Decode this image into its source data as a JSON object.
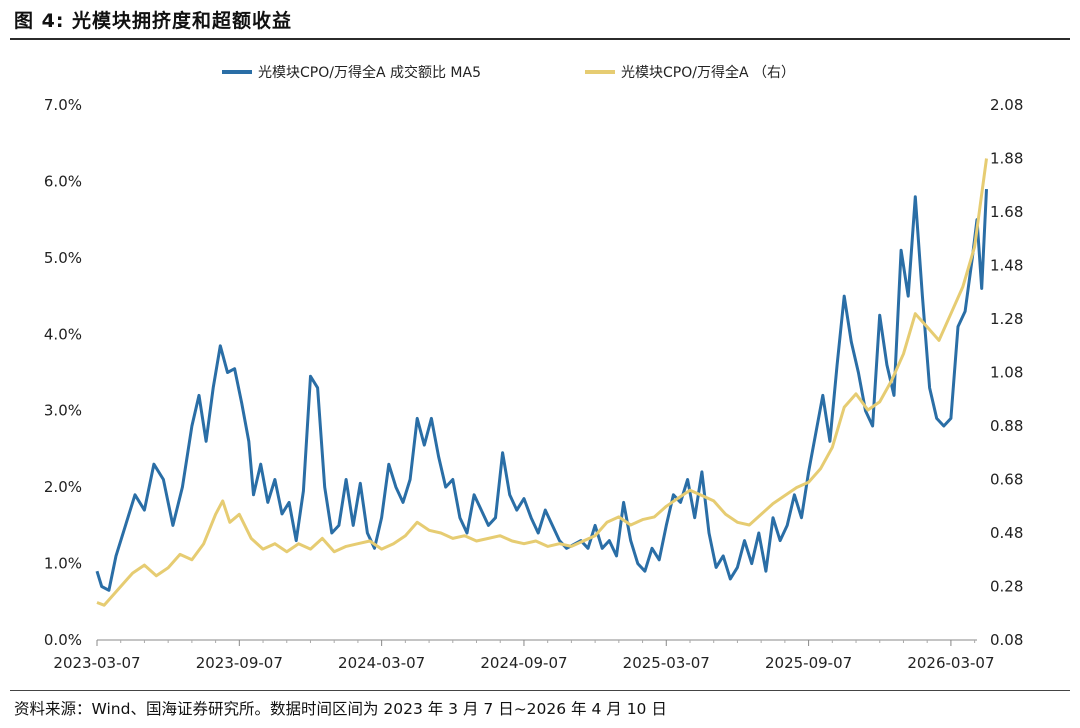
{
  "figure": {
    "title": "图 4:  光模块拥挤度和超额收益",
    "source": "资料来源：Wind、国海证券研究所。数据时间区间为 2023 年 3 月 7 日~2026 年 4 月 10 日"
  },
  "chart_data": {
    "type": "line",
    "legend_position": "top-center",
    "x_tick_labels": [
      "2023-03-07",
      "2023-09-07",
      "2024-03-07",
      "2024-09-07",
      "2025-03-07",
      "2025-09-07",
      "2026-03-07"
    ],
    "x_range": [
      0,
      37.1
    ],
    "x_unit": "months since 2023-03-07",
    "left_axis": {
      "ylim": [
        0.0,
        7.0
      ],
      "tick_labels": [
        "0.0%",
        "1.0%",
        "2.0%",
        "3.0%",
        "4.0%",
        "5.0%",
        "6.0%",
        "7.0%"
      ]
    },
    "right_axis": {
      "ylim": [
        0.08,
        2.08
      ],
      "tick_labels": [
        "0.08",
        "0.28",
        "0.48",
        "0.68",
        "0.88",
        "1.08",
        "1.28",
        "1.48",
        "1.68",
        "1.88",
        "2.08"
      ]
    },
    "series": [
      {
        "name": "光模块CPO/万得全A 成交额比 MA5",
        "axis": "left",
        "color": "#2a6ea6",
        "points": [
          [
            0,
            0.9
          ],
          [
            0.2,
            0.7
          ],
          [
            0.5,
            0.65
          ],
          [
            0.8,
            1.1
          ],
          [
            1.2,
            1.5
          ],
          [
            1.6,
            1.9
          ],
          [
            2,
            1.7
          ],
          [
            2.4,
            2.3
          ],
          [
            2.8,
            2.1
          ],
          [
            3.2,
            1.5
          ],
          [
            3.6,
            2.0
          ],
          [
            4.0,
            2.8
          ],
          [
            4.3,
            3.2
          ],
          [
            4.6,
            2.6
          ],
          [
            4.9,
            3.3
          ],
          [
            5.2,
            3.85
          ],
          [
            5.5,
            3.5
          ],
          [
            5.8,
            3.55
          ],
          [
            6.1,
            3.1
          ],
          [
            6.4,
            2.6
          ],
          [
            6.6,
            1.9
          ],
          [
            6.9,
            2.3
          ],
          [
            7.2,
            1.8
          ],
          [
            7.5,
            2.1
          ],
          [
            7.8,
            1.65
          ],
          [
            8.1,
            1.8
          ],
          [
            8.4,
            1.3
          ],
          [
            8.7,
            1.95
          ],
          [
            9.0,
            3.45
          ],
          [
            9.3,
            3.3
          ],
          [
            9.6,
            2.0
          ],
          [
            9.9,
            1.4
          ],
          [
            10.2,
            1.5
          ],
          [
            10.5,
            2.1
          ],
          [
            10.8,
            1.5
          ],
          [
            11.1,
            2.05
          ],
          [
            11.4,
            1.4
          ],
          [
            11.7,
            1.2
          ],
          [
            12.0,
            1.6
          ],
          [
            12.3,
            2.3
          ],
          [
            12.6,
            2.0
          ],
          [
            12.9,
            1.8
          ],
          [
            13.2,
            2.1
          ],
          [
            13.5,
            2.9
          ],
          [
            13.8,
            2.55
          ],
          [
            14.1,
            2.9
          ],
          [
            14.4,
            2.4
          ],
          [
            14.7,
            2.0
          ],
          [
            15.0,
            2.1
          ],
          [
            15.3,
            1.6
          ],
          [
            15.6,
            1.4
          ],
          [
            15.9,
            1.9
          ],
          [
            16.2,
            1.7
          ],
          [
            16.5,
            1.5
          ],
          [
            16.8,
            1.6
          ],
          [
            17.1,
            2.45
          ],
          [
            17.4,
            1.9
          ],
          [
            17.7,
            1.7
          ],
          [
            18.0,
            1.85
          ],
          [
            18.3,
            1.6
          ],
          [
            18.6,
            1.4
          ],
          [
            18.9,
            1.7
          ],
          [
            19.2,
            1.5
          ],
          [
            19.5,
            1.3
          ],
          [
            19.8,
            1.2
          ],
          [
            20.1,
            1.25
          ],
          [
            20.4,
            1.3
          ],
          [
            20.7,
            1.2
          ],
          [
            21.0,
            1.5
          ],
          [
            21.3,
            1.2
          ],
          [
            21.6,
            1.3
          ],
          [
            21.9,
            1.1
          ],
          [
            22.2,
            1.8
          ],
          [
            22.5,
            1.3
          ],
          [
            22.8,
            1.0
          ],
          [
            23.1,
            0.9
          ],
          [
            23.4,
            1.2
          ],
          [
            23.7,
            1.05
          ],
          [
            24.0,
            1.5
          ],
          [
            24.3,
            1.9
          ],
          [
            24.6,
            1.8
          ],
          [
            24.9,
            2.1
          ],
          [
            25.2,
            1.6
          ],
          [
            25.5,
            2.2
          ],
          [
            25.8,
            1.4
          ],
          [
            26.1,
            0.95
          ],
          [
            26.4,
            1.1
          ],
          [
            26.7,
            0.8
          ],
          [
            27.0,
            0.95
          ],
          [
            27.3,
            1.3
          ],
          [
            27.6,
            1.0
          ],
          [
            27.9,
            1.4
          ],
          [
            28.2,
            0.9
          ],
          [
            28.5,
            1.6
          ],
          [
            28.8,
            1.3
          ],
          [
            29.1,
            1.5
          ],
          [
            29.4,
            1.9
          ],
          [
            29.7,
            1.6
          ],
          [
            30.0,
            2.2
          ],
          [
            30.3,
            2.7
          ],
          [
            30.6,
            3.2
          ],
          [
            30.9,
            2.6
          ],
          [
            31.2,
            3.6
          ],
          [
            31.5,
            4.5
          ],
          [
            31.8,
            3.9
          ],
          [
            32.1,
            3.5
          ],
          [
            32.4,
            3.0
          ],
          [
            32.7,
            2.8
          ],
          [
            33.0,
            4.25
          ],
          [
            33.3,
            3.6
          ],
          [
            33.6,
            3.2
          ],
          [
            33.9,
            5.1
          ],
          [
            34.2,
            4.5
          ],
          [
            34.5,
            5.8
          ],
          [
            34.8,
            4.5
          ],
          [
            35.1,
            3.3
          ],
          [
            35.4,
            2.9
          ],
          [
            35.7,
            2.8
          ],
          [
            36.0,
            2.9
          ],
          [
            36.3,
            4.1
          ],
          [
            36.6,
            4.3
          ],
          [
            36.9,
            5.0
          ],
          [
            37.1,
            5.5
          ],
          [
            37.3,
            4.6
          ],
          [
            37.5,
            5.9
          ]
        ]
      },
      {
        "name": "光模块CPO/万得全A （右）",
        "axis": "right",
        "color": "#e6cc72",
        "points": [
          [
            0,
            0.22
          ],
          [
            0.3,
            0.21
          ],
          [
            0.6,
            0.24
          ],
          [
            1,
            0.28
          ],
          [
            1.5,
            0.33
          ],
          [
            2,
            0.36
          ],
          [
            2.5,
            0.32
          ],
          [
            3,
            0.35
          ],
          [
            3.5,
            0.4
          ],
          [
            4,
            0.38
          ],
          [
            4.5,
            0.44
          ],
          [
            5,
            0.55
          ],
          [
            5.3,
            0.6
          ],
          [
            5.6,
            0.52
          ],
          [
            6,
            0.55
          ],
          [
            6.5,
            0.46
          ],
          [
            7,
            0.42
          ],
          [
            7.5,
            0.44
          ],
          [
            8,
            0.41
          ],
          [
            8.5,
            0.44
          ],
          [
            9,
            0.42
          ],
          [
            9.5,
            0.46
          ],
          [
            10,
            0.41
          ],
          [
            10.5,
            0.43
          ],
          [
            11,
            0.44
          ],
          [
            11.5,
            0.45
          ],
          [
            12,
            0.42
          ],
          [
            12.5,
            0.44
          ],
          [
            13,
            0.47
          ],
          [
            13.5,
            0.52
          ],
          [
            14,
            0.49
          ],
          [
            14.5,
            0.48
          ],
          [
            15,
            0.46
          ],
          [
            15.5,
            0.47
          ],
          [
            16,
            0.45
          ],
          [
            16.5,
            0.46
          ],
          [
            17,
            0.47
          ],
          [
            17.5,
            0.45
          ],
          [
            18,
            0.44
          ],
          [
            18.5,
            0.45
          ],
          [
            19,
            0.43
          ],
          [
            19.5,
            0.44
          ],
          [
            20,
            0.43
          ],
          [
            20.5,
            0.45
          ],
          [
            21,
            0.47
          ],
          [
            21.5,
            0.52
          ],
          [
            22,
            0.54
          ],
          [
            22.5,
            0.51
          ],
          [
            23,
            0.53
          ],
          [
            23.5,
            0.54
          ],
          [
            24,
            0.58
          ],
          [
            24.5,
            0.61
          ],
          [
            25,
            0.64
          ],
          [
            25.5,
            0.62
          ],
          [
            26,
            0.6
          ],
          [
            26.5,
            0.55
          ],
          [
            27,
            0.52
          ],
          [
            27.5,
            0.51
          ],
          [
            28,
            0.55
          ],
          [
            28.5,
            0.59
          ],
          [
            29,
            0.62
          ],
          [
            29.5,
            0.65
          ],
          [
            30,
            0.67
          ],
          [
            30.5,
            0.72
          ],
          [
            31,
            0.8
          ],
          [
            31.5,
            0.95
          ],
          [
            32,
            1.0
          ],
          [
            32.5,
            0.94
          ],
          [
            33,
            0.97
          ],
          [
            33.5,
            1.05
          ],
          [
            34,
            1.15
          ],
          [
            34.5,
            1.3
          ],
          [
            35,
            1.25
          ],
          [
            35.5,
            1.2
          ],
          [
            36,
            1.3
          ],
          [
            36.5,
            1.4
          ],
          [
            37,
            1.55
          ],
          [
            37.5,
            1.88
          ]
        ]
      }
    ]
  }
}
